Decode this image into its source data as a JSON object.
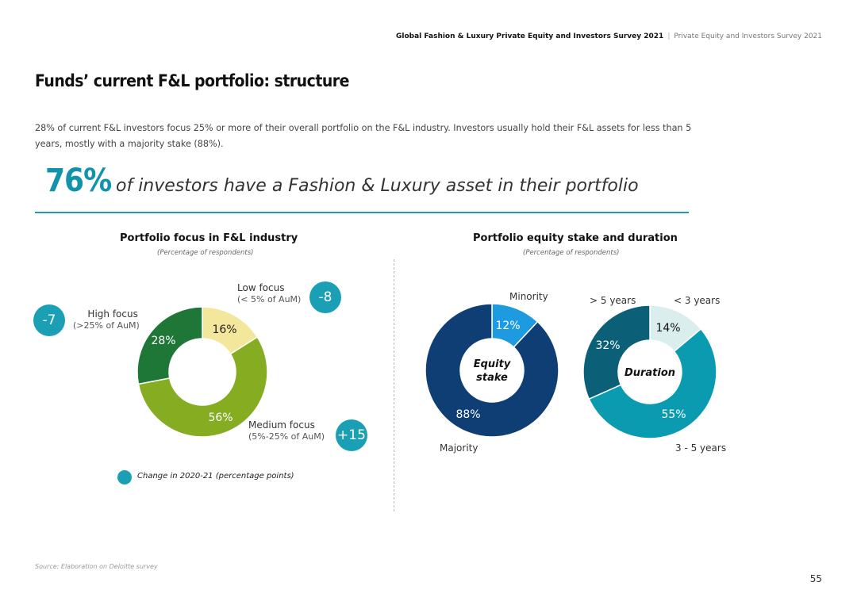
{
  "header": {
    "bold": "Global Fashion & Luxury Private Equity and Investors Survey 2021",
    "sep": "|",
    "light": "Private Equity and Investors Survey 2021"
  },
  "title": "Funds’ current F&L portfolio: structure",
  "intro": "28% of current F&L investors focus 25% or more of their overall portfolio on the F&L industry. Investors usually hold their F&L assets for less than 5 years, mostly with a majority stake (88%).",
  "highlight": {
    "value": "76%",
    "text": "of investors have a Fashion & Luxury asset in their portfolio"
  },
  "left_chart": {
    "title": "Portfolio focus in F&L industry",
    "subtitle": "(Percentage of respondents)",
    "legend": "Change in 2020-21 (percentage points)"
  },
  "right_chart": {
    "title": "Portfolio equity stake and duration",
    "subtitle": "(Percentage of respondents)"
  },
  "chart_data": [
    {
      "type": "pie",
      "title": "Portfolio focus in F&L industry",
      "subtitle": "(Percentage of respondents)",
      "slices": [
        {
          "label": "Low focus",
          "sublabel": "(< 5% of AuM)",
          "value": 16,
          "display": "16%",
          "change": "-8",
          "color": "#f3e79b"
        },
        {
          "label": "Medium focus",
          "sublabel": "(5%-25% of AuM)",
          "value": 56,
          "display": "56%",
          "change": "+15",
          "color": "#86ac21"
        },
        {
          "label": "High focus",
          "sublabel": "(>25% of AuM)",
          "value": 28,
          "display": "28%",
          "change": "-7",
          "color": "#1e7737"
        }
      ]
    },
    {
      "type": "pie",
      "title": "Portfolio equity stake and duration",
      "center": "Equity stake",
      "slices": [
        {
          "label": "Minority",
          "value": 12,
          "display": "12%",
          "color": "#1e9be0"
        },
        {
          "label": "Majority",
          "value": 88,
          "display": "88%",
          "color": "#0e3e73"
        }
      ]
    },
    {
      "type": "pie",
      "center": "Duration",
      "slices": [
        {
          "label": "< 3 years",
          "value": 14,
          "display": "14%",
          "color": "#dbeeee"
        },
        {
          "label": "3 - 5 years",
          "value": 55,
          "display": "55%",
          "color": "#0a9bb0"
        },
        {
          "label": "> 5 years",
          "value": 32,
          "display": "32%",
          "color": "#0b6078"
        }
      ]
    }
  ],
  "footer": {
    "source": "Source: Elaboration on Deloitte survey",
    "page": "55"
  }
}
